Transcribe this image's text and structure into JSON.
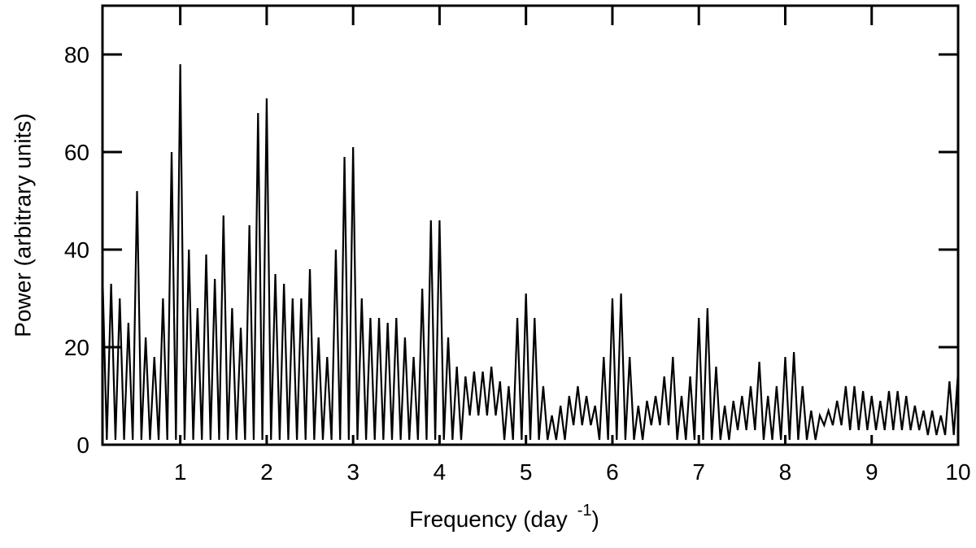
{
  "chart_data": {
    "type": "line",
    "x_label": {
      "text": "Frequency (day",
      "superscript": "-1",
      "suffix": ")"
    },
    "y_label": "Power (arbitrary units)",
    "color": "#000000",
    "xlim": [
      0.1,
      10
    ],
    "xticks": [
      1,
      2,
      3,
      4,
      5,
      6,
      7,
      8,
      9,
      10
    ],
    "ylim": [
      0,
      90
    ],
    "yticks": [
      0,
      20,
      40,
      60,
      80
    ],
    "x": [
      0.1,
      0.15,
      0.2,
      0.25,
      0.3,
      0.35,
      0.4,
      0.45,
      0.5,
      0.55,
      0.6,
      0.65,
      0.7,
      0.75,
      0.8,
      0.85,
      0.9,
      0.95,
      1,
      1.05,
      1.1,
      1.15,
      1.2,
      1.25,
      1.3,
      1.35,
      1.4,
      1.45,
      1.5,
      1.55,
      1.6,
      1.65,
      1.7,
      1.75,
      1.8,
      1.85,
      1.9,
      1.95,
      2,
      2.05,
      2.1,
      2.15,
      2.2,
      2.25,
      2.3,
      2.35,
      2.4,
      2.45,
      2.5,
      2.55,
      2.6,
      2.65,
      2.7,
      2.75,
      2.8,
      2.85,
      2.9,
      2.95,
      3,
      3.05,
      3.1,
      3.15,
      3.2,
      3.25,
      3.3,
      3.35,
      3.4,
      3.45,
      3.5,
      3.55,
      3.6,
      3.65,
      3.7,
      3.75,
      3.8,
      3.85,
      3.9,
      3.95,
      4,
      4.05,
      4.1,
      4.15,
      4.2,
      4.25,
      4.3,
      4.35,
      4.4,
      4.45,
      4.5,
      4.55,
      4.6,
      4.65,
      4.7,
      4.75,
      4.8,
      4.85,
      4.9,
      4.95,
      5,
      5.05,
      5.1,
      5.15,
      5.2,
      5.25,
      5.3,
      5.35,
      5.4,
      5.45,
      5.5,
      5.55,
      5.6,
      5.65,
      5.7,
      5.75,
      5.8,
      5.85,
      5.9,
      5.95,
      6,
      6.05,
      6.1,
      6.15,
      6.2,
      6.25,
      6.3,
      6.35,
      6.4,
      6.45,
      6.5,
      6.55,
      6.6,
      6.65,
      6.7,
      6.75,
      6.8,
      6.85,
      6.9,
      6.95,
      7,
      7.05,
      7.1,
      7.15,
      7.2,
      7.25,
      7.3,
      7.35,
      7.4,
      7.45,
      7.5,
      7.55,
      7.6,
      7.65,
      7.7,
      7.75,
      7.8,
      7.85,
      7.9,
      7.95,
      8,
      8.05,
      8.1,
      8.15,
      8.2,
      8.25,
      8.3,
      8.35,
      8.4,
      8.45,
      8.5,
      8.55,
      8.6,
      8.65,
      8.7,
      8.75,
      8.8,
      8.85,
      8.9,
      8.95,
      9,
      9.05,
      9.1,
      9.15,
      9.2,
      9.25,
      9.3,
      9.35,
      9.4,
      9.45,
      9.5,
      9.55,
      9.6,
      9.65,
      9.7,
      9.75,
      9.8,
      9.85,
      9.9,
      9.95,
      10
    ],
    "values": [
      35,
      1,
      33,
      1,
      30,
      1,
      25,
      1,
      52,
      1,
      22,
      1,
      18,
      1,
      30,
      1,
      60,
      1,
      78,
      1,
      40,
      1,
      28,
      1,
      39,
      1,
      34,
      1,
      47,
      1,
      28,
      1,
      24,
      1,
      45,
      1,
      68,
      1,
      71,
      1,
      35,
      1,
      33,
      1,
      30,
      1,
      30,
      1,
      36,
      1,
      22,
      1,
      18,
      1,
      40,
      1,
      59,
      1,
      61,
      1,
      30,
      1,
      26,
      1,
      26,
      1,
      25,
      1,
      26,
      1,
      22,
      1,
      18,
      1,
      32,
      1,
      46,
      1,
      46,
      1,
      22,
      1,
      16,
      1,
      14,
      6,
      15,
      6,
      15,
      6,
      16,
      6,
      13,
      1,
      12,
      1,
      26,
      1,
      31,
      1,
      26,
      1,
      12,
      1,
      6,
      1,
      8,
      1,
      10,
      4,
      12,
      4,
      10,
      4,
      8,
      1,
      18,
      1,
      30,
      1,
      31,
      1,
      18,
      1,
      8,
      1,
      9,
      4,
      10,
      4,
      14,
      4,
      18,
      1,
      10,
      1,
      14,
      1,
      26,
      1,
      28,
      1,
      16,
      1,
      8,
      1,
      9,
      3,
      10,
      3,
      12,
      3,
      17,
      1,
      10,
      1,
      12,
      1,
      18,
      1,
      19,
      1,
      12,
      1,
      7,
      1,
      6,
      4,
      7,
      4,
      9,
      4,
      12,
      3,
      12,
      3,
      11,
      3,
      10,
      3,
      9,
      3,
      11,
      3,
      11,
      3,
      10,
      3,
      8,
      3,
      7,
      2,
      7,
      2,
      6,
      2,
      13,
      2,
      15
    ]
  }
}
